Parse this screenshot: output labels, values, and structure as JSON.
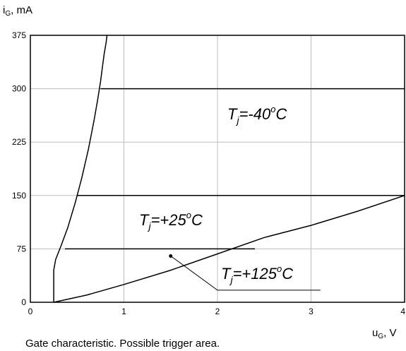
{
  "chart_data": {
    "type": "line",
    "caption": "Gate characteristic. Possible trigger area.",
    "ylabel": {
      "symbol": "i",
      "sub": "G",
      "unit": ", mA"
    },
    "xlabel": {
      "symbol": "u",
      "sub": "G",
      "unit": ", V"
    },
    "xlim": [
      0,
      4
    ],
    "ylim": [
      0,
      375
    ],
    "xticks": [
      0,
      1,
      2,
      3,
      4
    ],
    "yticks": [
      0,
      75,
      150,
      225,
      300,
      375
    ],
    "grid": true,
    "series": [
      {
        "role": "boundary-curve",
        "x": [
          0.25,
          0.25,
          0.27,
          0.33,
          0.4,
          0.48,
          0.55,
          0.62,
          0.68,
          0.72,
          0.75,
          0.77,
          0.79,
          0.81,
          0.82
        ],
        "y": [
          0,
          45,
          60,
          80,
          105,
          140,
          175,
          215,
          255,
          285,
          310,
          330,
          350,
          365,
          375
        ]
      },
      {
        "role": "minimum-trigger-curve",
        "x": [
          0.25,
          0.6,
          1.0,
          1.5,
          2.0,
          2.5,
          3.0,
          3.5,
          4.0
        ],
        "y": [
          0,
          10,
          25,
          45,
          68,
          91,
          108,
          128,
          150
        ]
      },
      {
        "role": "level",
        "x": [
          0.75,
          4.0
        ],
        "y": [
          300,
          300
        ]
      },
      {
        "role": "level",
        "x": [
          0.5,
          4.0
        ],
        "y": [
          150,
          150
        ]
      },
      {
        "role": "level",
        "x": [
          0.37,
          2.4
        ],
        "y": [
          75,
          75
        ]
      }
    ],
    "annotations": [
      {
        "base": "T",
        "sub": "j",
        "value": "=-40",
        "sup": "o",
        "unit": "C"
      },
      {
        "base": "T",
        "sub": "j",
        "value": "=+25",
        "sup": "o",
        "unit": "C"
      },
      {
        "base": "T",
        "sub": "j",
        "value": "=+125",
        "sup": "o",
        "unit": "C",
        "leader": {
          "point": [
            1.5,
            65
          ],
          "bend": [
            2.0,
            17
          ],
          "end": [
            3.1,
            17
          ]
        }
      }
    ]
  }
}
